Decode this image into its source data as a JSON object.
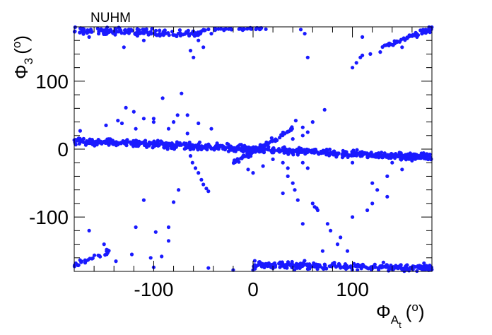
{
  "chart_data": {
    "type": "scatter",
    "title": "NUHM",
    "xlabel": {
      "main": "Φ",
      "sub": "A",
      "subsub": "t",
      "unit_open": "(",
      "unit_sup": "o",
      "unit_close": ")"
    },
    "ylabel": {
      "main": "Φ",
      "sub": "3",
      "unit_open": "(",
      "unit_sup": "o",
      "unit_close": ")"
    },
    "xlim": [
      -180,
      180
    ],
    "ylim": [
      -180,
      180
    ],
    "xticks": [
      -100,
      0,
      100
    ],
    "yticks": [
      -100,
      0,
      100
    ],
    "xtick_labels": [
      "-100",
      "0",
      "100"
    ],
    "ytick_labels": [
      "-100",
      "0",
      "100"
    ],
    "grid": false,
    "marker_color": "#1a1aff",
    "series": [
      {
        "bands": [
          {
            "x_start": -180,
            "x_end": 180,
            "y_start": 12,
            "y_end": -12,
            "spread": 5,
            "count": 700
          },
          {
            "x_start": -180,
            "x_end": -50,
            "y_start": 175,
            "y_end": 170,
            "spread": 5,
            "count": 160
          },
          {
            "x_start": -50,
            "x_end": 15,
            "y_start": 176,
            "y_end": 178,
            "spread": 2,
            "count": 40
          },
          {
            "x_start": 130,
            "x_end": 180,
            "y_start": 150,
            "y_end": 178,
            "spread": 4,
            "count": 50
          },
          {
            "x_start": 0,
            "x_end": 180,
            "y_start": -170,
            "y_end": -175,
            "spread": 5,
            "count": 260
          },
          {
            "x_start": -180,
            "x_end": -145,
            "y_start": -172,
            "y_end": -150,
            "spread": 4,
            "count": 30
          },
          {
            "x_start": -20,
            "x_end": 40,
            "y_start": -20,
            "y_end": 30,
            "spread": 4,
            "count": 80
          }
        ],
        "points": [
          [
            -174,
            27
          ],
          [
            -148,
            35
          ],
          [
            -136,
            42
          ],
          [
            -128,
            61
          ],
          [
            -120,
            55
          ],
          [
            -110,
            45
          ],
          [
            -100,
            40
          ],
          [
            -91,
            75
          ],
          [
            -80,
            40
          ],
          [
            -72,
            82
          ],
          [
            -66,
            50
          ],
          [
            -55,
            38
          ],
          [
            -42,
            30
          ],
          [
            -85,
            30
          ],
          [
            -76,
            50
          ],
          [
            -118,
            30
          ],
          [
            -100,
            45
          ],
          [
            -132,
            38
          ],
          [
            -66,
            23
          ],
          [
            -63,
            -10
          ],
          [
            -61,
            -20
          ],
          [
            -58,
            -28
          ],
          [
            -55,
            -35
          ],
          [
            -52,
            -45
          ],
          [
            -50,
            -52
          ],
          [
            -47,
            -58
          ],
          [
            -45,
            -62
          ],
          [
            -75,
            -60
          ],
          [
            -80,
            -78
          ],
          [
            -85,
            -115
          ],
          [
            -110,
            -75
          ],
          [
            -118,
            -115
          ],
          [
            -98,
            -122
          ],
          [
            -85,
            -135
          ],
          [
            -122,
            -155
          ],
          [
            -103,
            -160
          ],
          [
            -92,
            -158
          ],
          [
            -165,
            -120
          ],
          [
            -150,
            -140
          ],
          [
            -138,
            -165
          ],
          [
            30,
            -20
          ],
          [
            35,
            -40
          ],
          [
            40,
            -50
          ],
          [
            42,
            -60
          ],
          [
            30,
            -65
          ],
          [
            45,
            -75
          ],
          [
            60,
            -80
          ],
          [
            62,
            -85
          ],
          [
            64,
            -87
          ],
          [
            65,
            -90
          ],
          [
            50,
            -110
          ],
          [
            75,
            -110
          ],
          [
            78,
            -120
          ],
          [
            88,
            -130
          ],
          [
            85,
            -140
          ],
          [
            70,
            -150
          ],
          [
            95,
            -150
          ],
          [
            100,
            -100
          ],
          [
            115,
            -90
          ],
          [
            120,
            -80
          ],
          [
            125,
            -60
          ],
          [
            120,
            -50
          ],
          [
            135,
            -40
          ],
          [
            140,
            -20
          ],
          [
            145,
            -10
          ],
          [
            150,
            -30
          ],
          [
            135,
            -70
          ],
          [
            100,
            -20
          ],
          [
            50,
            -20
          ],
          [
            55,
            -28
          ],
          [
            10,
            -25
          ],
          [
            40,
            15
          ],
          [
            50,
            20
          ],
          [
            55,
            25
          ],
          [
            60,
            40
          ],
          [
            72,
            58
          ],
          [
            43,
            42
          ],
          [
            50,
            32
          ],
          [
            20,
            -15
          ],
          [
            35,
            -28
          ],
          [
            -5,
            -30
          ],
          [
            0,
            -35
          ],
          [
            100,
            120
          ],
          [
            104,
            127
          ],
          [
            108,
            135
          ],
          [
            110,
            138
          ],
          [
            118,
            140
          ],
          [
            128,
            143
          ],
          [
            110,
            165
          ],
          [
            55,
            135
          ],
          [
            52,
            170
          ],
          [
            48,
            176
          ],
          [
            -80,
            168
          ],
          [
            -63,
            145
          ],
          [
            -60,
            135
          ],
          [
            -55,
            160
          ],
          [
            -50,
            150
          ],
          [
            -42,
            170
          ],
          [
            -110,
            160
          ],
          [
            -130,
            150
          ],
          [
            -165,
            165
          ],
          [
            150,
            150
          ],
          [
            165,
            165
          ],
          [
            170,
            170
          ],
          [
            178,
            172
          ],
          [
            172,
            -168
          ],
          [
            176,
            -175
          ],
          [
            -100,
            -174
          ],
          [
            -45,
            -175
          ],
          [
            -20,
            -178
          ],
          [
            0,
            -178
          ]
        ]
      }
    ]
  }
}
